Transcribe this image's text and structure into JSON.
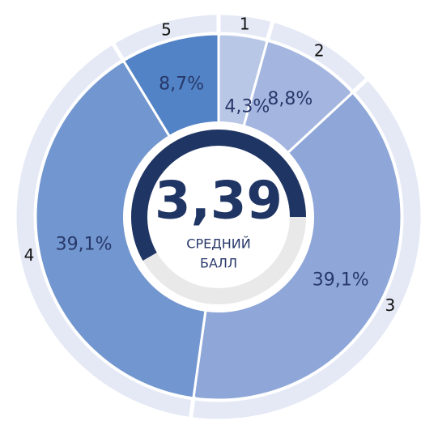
{
  "chart_data": {
    "type": "pie",
    "categories": [
      "1",
      "2",
      "3",
      "4",
      "5"
    ],
    "values": [
      4.3,
      8.8,
      39.1,
      39.1,
      8.7
    ],
    "value_labels": [
      "4,3%",
      "8,8%",
      "39,1%",
      "39,1%",
      "8,7%"
    ],
    "colors": [
      "#b9c7e7",
      "#a4b6e0",
      "#8ea6d8",
      "#7296cf",
      "#5283c6"
    ],
    "center_value": "3,39",
    "center_caption": [
      "СРЕДНИЙ",
      "БАЛЛ"
    ]
  }
}
